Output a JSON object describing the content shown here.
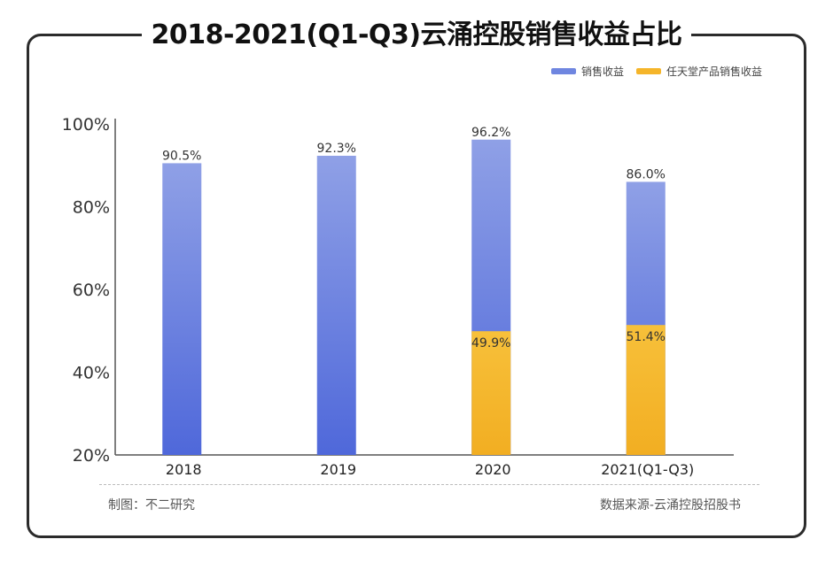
{
  "title": "2018-2021(Q1-Q3)云涌控股销售收益占比",
  "legend": [
    {
      "label": "销售收益",
      "color": "#6F86E0"
    },
    {
      "label": "任天堂产品销售收益",
      "color": "#F5B52A"
    }
  ],
  "footer": {
    "left": "制图：不二研究",
    "right": "数据来源-云涌控股招股书"
  },
  "chart_data": {
    "type": "bar",
    "categories": [
      "2018",
      "2019",
      "2020",
      "2021(Q1-Q3)"
    ],
    "series": [
      {
        "name": "销售收益",
        "values": [
          90.5,
          92.3,
          96.2,
          86.0
        ],
        "labels": [
          "90.5%",
          "92.3%",
          "96.2%",
          "86.0%"
        ],
        "color": "#6F86E0"
      },
      {
        "name": "任天堂产品销售收益",
        "values": [
          null,
          null,
          49.9,
          51.4
        ],
        "labels": [
          "",
          "",
          "49.9%",
          "51.4%"
        ],
        "color": "#F5B52A"
      }
    ],
    "yticks": [
      "20%",
      "40%",
      "60%",
      "80%",
      "100%"
    ],
    "ylim": [
      20,
      100
    ],
    "grid": false,
    "legend_position": "top-right"
  }
}
